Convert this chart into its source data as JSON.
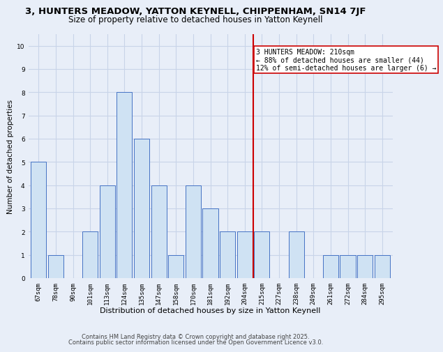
{
  "title1": "3, HUNTERS MEADOW, YATTON KEYNELL, CHIPPENHAM, SN14 7JF",
  "title2": "Size of property relative to detached houses in Yatton Keynell",
  "xlabel": "Distribution of detached houses by size in Yatton Keynell",
  "ylabel": "Number of detached properties",
  "categories": [
    "67sqm",
    "78sqm",
    "90sqm",
    "101sqm",
    "113sqm",
    "124sqm",
    "135sqm",
    "147sqm",
    "158sqm",
    "170sqm",
    "181sqm",
    "192sqm",
    "204sqm",
    "215sqm",
    "227sqm",
    "238sqm",
    "249sqm",
    "261sqm",
    "272sqm",
    "284sqm",
    "295sqm"
  ],
  "values": [
    5,
    1,
    0,
    2,
    4,
    8,
    6,
    4,
    1,
    4,
    3,
    2,
    2,
    2,
    0,
    2,
    0,
    1,
    1,
    1,
    1
  ],
  "bar_color": "#cfe2f3",
  "bar_edge_color": "#4472c4",
  "grid_color": "#c8d4e8",
  "background_color": "#e8eef8",
  "red_line_index": 13,
  "annotation_text": "3 HUNTERS MEADOW: 210sqm\n← 88% of detached houses are smaller (44)\n12% of semi-detached houses are larger (6) →",
  "annotation_box_color": "#ffffff",
  "annotation_edge_color": "#cc0000",
  "red_line_color": "#cc0000",
  "ylim": [
    0,
    10.5
  ],
  "yticks": [
    0,
    1,
    2,
    3,
    4,
    5,
    6,
    7,
    8,
    9,
    10
  ],
  "footer1": "Contains HM Land Registry data © Crown copyright and database right 2025.",
  "footer2": "Contains public sector information licensed under the Open Government Licence v3.0.",
  "title1_fontsize": 9.5,
  "title2_fontsize": 8.5,
  "xlabel_fontsize": 8,
  "ylabel_fontsize": 7.5,
  "annotation_fontsize": 7,
  "tick_fontsize": 6.5,
  "footer_fontsize": 6
}
